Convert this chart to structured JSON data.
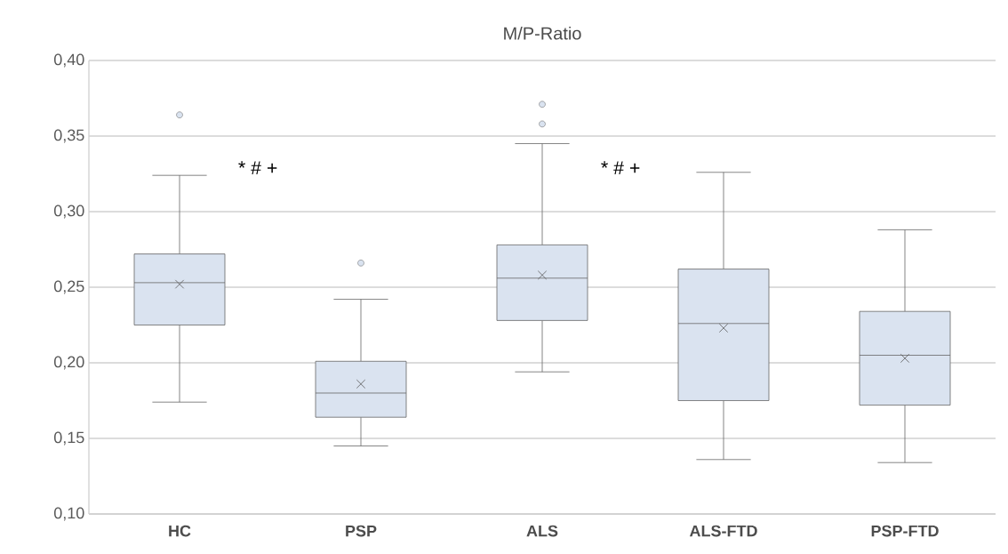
{
  "chart_data": {
    "type": "box",
    "title": "M/P-Ratio",
    "categories": [
      "HC",
      "PSP",
      "ALS",
      "ALS-FTD",
      "PSP-FTD"
    ],
    "series": [
      {
        "color": "#dae3f0",
        "boxes": [
          {
            "low": 0.174,
            "q1": 0.225,
            "median": 0.253,
            "q3": 0.272,
            "high": 0.324,
            "mean": 0.252,
            "outliers": [
              0.364
            ]
          },
          {
            "low": 0.145,
            "q1": 0.164,
            "median": 0.18,
            "q3": 0.201,
            "high": 0.242,
            "mean": 0.186,
            "outliers": [
              0.266
            ]
          },
          {
            "low": 0.194,
            "q1": 0.228,
            "median": 0.256,
            "q3": 0.278,
            "high": 0.345,
            "mean": 0.258,
            "outliers": [
              0.371,
              0.358
            ]
          },
          {
            "low": 0.136,
            "q1": 0.175,
            "median": 0.226,
            "q3": 0.262,
            "high": 0.326,
            "mean": 0.223
          },
          {
            "low": 0.134,
            "q1": 0.172,
            "median": 0.205,
            "q3": 0.234,
            "high": 0.288,
            "mean": 0.203
          }
        ]
      }
    ],
    "ylim": [
      0.1,
      0.4
    ],
    "yticks": [
      {
        "value": 0.1,
        "label": "0,10"
      },
      {
        "value": 0.15,
        "label": "0,15"
      },
      {
        "value": 0.2,
        "label": "0,20"
      },
      {
        "value": 0.25,
        "label": "0,25"
      },
      {
        "value": 0.3,
        "label": "0,30"
      },
      {
        "value": 0.35,
        "label": "0,35"
      },
      {
        "value": 0.4,
        "label": "0,40"
      }
    ],
    "grid": "y",
    "annotations": [
      "* # +",
      "* # +"
    ]
  }
}
